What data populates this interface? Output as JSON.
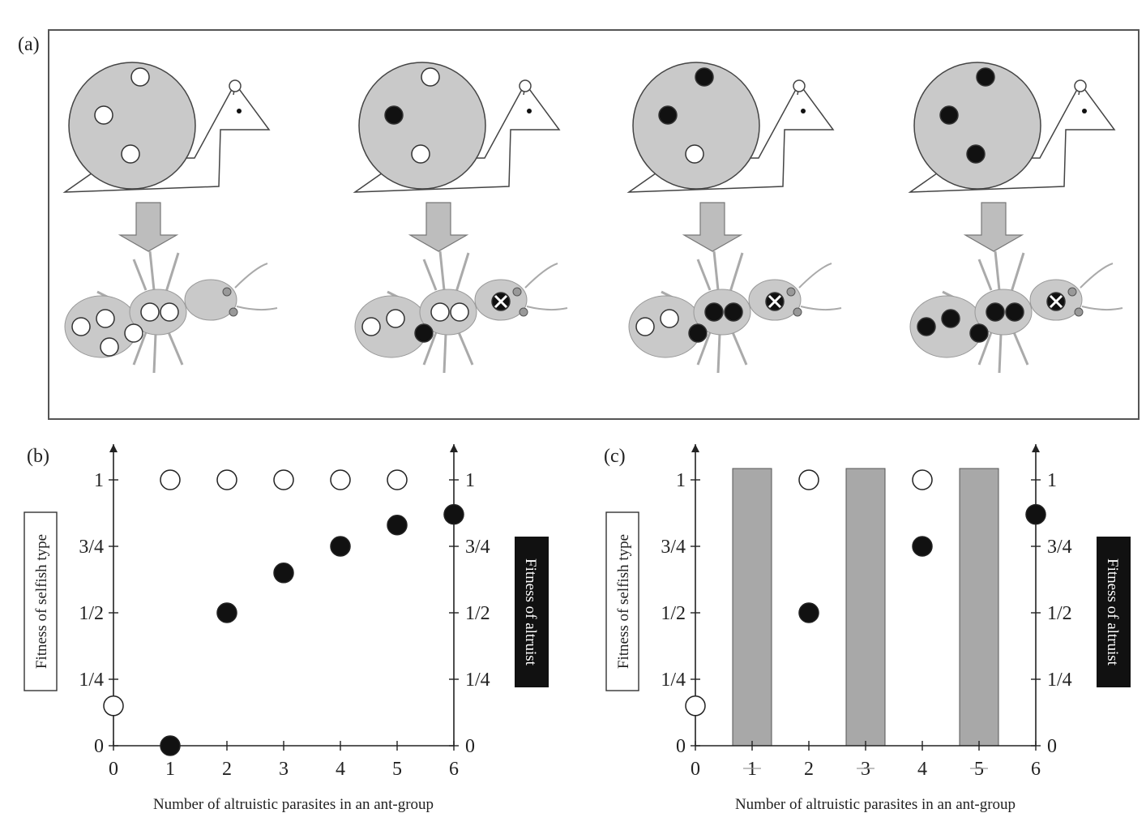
{
  "panels": {
    "a": {
      "label": "(a)"
    },
    "b": {
      "label": "(b)"
    },
    "c": {
      "label": "(c)"
    }
  },
  "stages": [
    {
      "snail_dots": [
        "white",
        "white",
        "white"
      ],
      "abdomen_dots": [
        "white",
        "white",
        "white",
        "white"
      ],
      "thorax_dots": [
        "white",
        "white"
      ],
      "head_dots": [],
      "head_cross": false
    },
    {
      "snail_dots": [
        "white",
        "black",
        "white"
      ],
      "abdomen_dots": [
        "white",
        "white",
        "black"
      ],
      "thorax_dots": [
        "white",
        "white"
      ],
      "head_dots": [],
      "head_cross": true
    },
    {
      "snail_dots": [
        "black",
        "black",
        "white"
      ],
      "abdomen_dots": [
        "white",
        "white",
        "black"
      ],
      "thorax_dots": [
        "black",
        "black"
      ],
      "head_dots": [],
      "head_cross": true
    },
    {
      "snail_dots": [
        "black",
        "black",
        "black"
      ],
      "abdomen_dots": [
        "black",
        "black",
        "black"
      ],
      "thorax_dots": [
        "black",
        "black"
      ],
      "head_dots": [],
      "head_cross": true
    }
  ],
  "colors": {
    "fill_gray": "#c9c9c9",
    "arrow_gray": "#bdbdbd",
    "bar_gray": "#a8a8a8",
    "black": "#111111",
    "white": "#ffffff"
  },
  "chart_data": [
    {
      "type": "scatter",
      "panel": "(b)",
      "xlabel": "Number of altruistic parasites in an ant-group",
      "ylabel_left": "Fitness of selfish type",
      "ylabel_right": "Fitness of altruist",
      "x_ticks": [
        "0",
        "1",
        "2",
        "3",
        "4",
        "5",
        "6"
      ],
      "y_ticks": [
        "0",
        "1/4",
        "1/2",
        "3/4",
        "1"
      ],
      "y_ticks_right": [
        "0",
        "1/4",
        "1/2",
        "3/4",
        "1"
      ],
      "xlim": [
        0,
        6
      ],
      "ylim": [
        0,
        1
      ],
      "series": [
        {
          "marker": "open-circle",
          "points": [
            [
              0,
              0.15
            ],
            [
              1,
              1
            ],
            [
              2,
              1
            ],
            [
              3,
              1
            ],
            [
              4,
              1
            ],
            [
              5,
              1
            ]
          ]
        },
        {
          "marker": "filled-circle",
          "points": [
            [
              1,
              0
            ],
            [
              2,
              0.5
            ],
            [
              3,
              0.65
            ],
            [
              4,
              0.75
            ],
            [
              5,
              0.83
            ],
            [
              6,
              0.87
            ]
          ]
        }
      ]
    },
    {
      "type": "scatter",
      "panel": "(c)",
      "xlabel": "Number of altruistic parasites in an ant-group",
      "ylabel_left": "Fitness of selfish type",
      "ylabel_right": "Fitness of altruist",
      "x_ticks": [
        "0",
        "1",
        "2",
        "3",
        "4",
        "5",
        "6"
      ],
      "y_ticks": [
        "0",
        "1/4",
        "1/2",
        "3/4",
        "1"
      ],
      "y_ticks_right": [
        "0",
        "1/4",
        "1/2",
        "3/4",
        "1"
      ],
      "xlim": [
        0,
        6
      ],
      "ylim": [
        0,
        1
      ],
      "excluded_x": [
        1,
        3,
        5
      ],
      "series": [
        {
          "marker": "open-circle",
          "points": [
            [
              0,
              0.15
            ],
            [
              2,
              1
            ],
            [
              4,
              1
            ]
          ]
        },
        {
          "marker": "filled-circle",
          "points": [
            [
              2,
              0.5
            ],
            [
              4,
              0.75
            ],
            [
              6,
              0.87
            ]
          ]
        }
      ]
    }
  ]
}
